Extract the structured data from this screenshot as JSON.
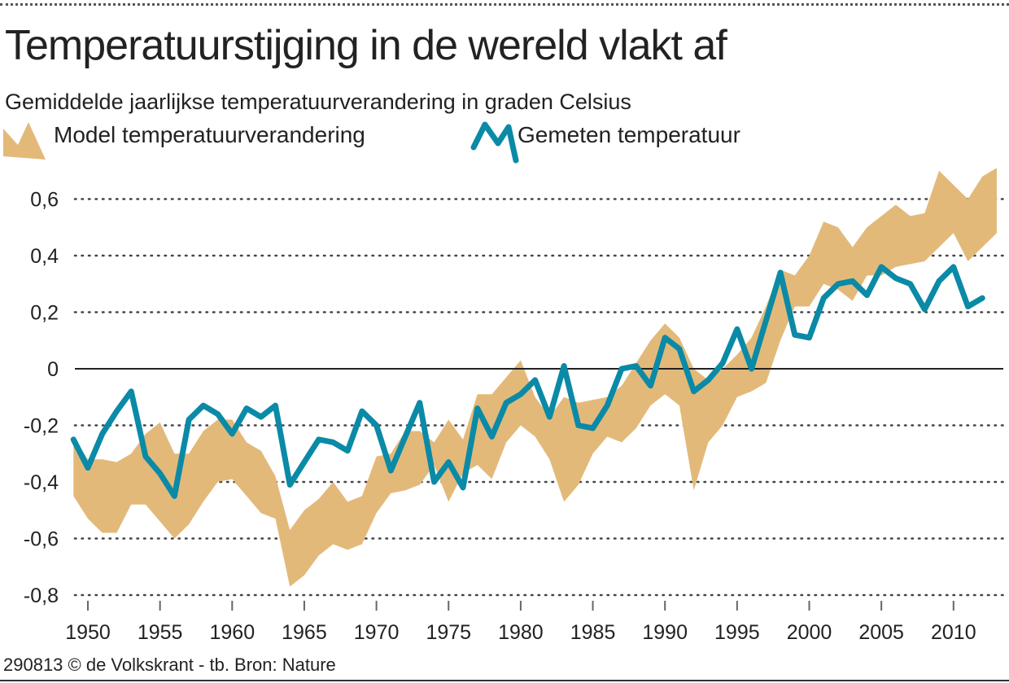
{
  "title": "Temperatuurstijging in de wereld vlakt af",
  "subtitle": "Gemiddelde jaarlijkse temperatuurverandering in graden Celsius",
  "footer": "290813 © de Volkskrant - tb. Bron: Nature",
  "colors": {
    "model_band": "#e3b97a",
    "measured_line": "#0a8aa6",
    "zero_line": "#222222",
    "grid": "#444444"
  },
  "chart_data": {
    "type": "line",
    "title": "Temperatuurstijging in de wereld vlakt af",
    "subtitle": "Gemiddelde jaarlijkse temperatuurverandering in graden Celsius",
    "xlabel": "",
    "ylabel": "",
    "ylim": [
      -0.8,
      0.7
    ],
    "xlim": [
      1949,
      2013
    ],
    "grid": "horizontal dotted",
    "legend": "top-left",
    "y_ticks": [
      0.6,
      0.4,
      0.2,
      0,
      -0.2,
      -0.4,
      -0.6,
      -0.8
    ],
    "y_tick_labels": [
      "0,6",
      "0,4",
      "0,2",
      "0",
      "-0,2",
      "-0,4",
      "-0,6",
      "-0,8"
    ],
    "x_ticks": [
      1950,
      1955,
      1960,
      1965,
      1970,
      1975,
      1980,
      1985,
      1990,
      1995,
      2000,
      2005,
      2010
    ],
    "x_tick_labels": [
      "1950",
      "1955",
      "1960",
      "1965",
      "1970",
      "1975",
      "1980",
      "1985",
      "1990",
      "1995",
      "2000",
      "2005",
      "2010"
    ],
    "series": [
      {
        "name": "Model temperatuurverandering",
        "type": "band",
        "x": [
          1949,
          1950,
          1951,
          1952,
          1953,
          1954,
          1955,
          1956,
          1957,
          1958,
          1959,
          1960,
          1961,
          1962,
          1963,
          1964,
          1965,
          1966,
          1967,
          1968,
          1969,
          1970,
          1971,
          1972,
          1973,
          1974,
          1975,
          1976,
          1977,
          1978,
          1979,
          1980,
          1981,
          1982,
          1983,
          1984,
          1985,
          1986,
          1987,
          1988,
          1989,
          1990,
          1991,
          1992,
          1993,
          1994,
          1995,
          1996,
          1997,
          1998,
          1999,
          2000,
          2001,
          2002,
          2003,
          2004,
          2005,
          2006,
          2007,
          2008,
          2009,
          2010,
          2011,
          2012,
          2013
        ],
        "upper": [
          -0.24,
          -0.32,
          -0.32,
          -0.33,
          -0.3,
          -0.23,
          -0.19,
          -0.3,
          -0.3,
          -0.22,
          -0.18,
          -0.18,
          -0.26,
          -0.29,
          -0.38,
          -0.57,
          -0.5,
          -0.46,
          -0.4,
          -0.47,
          -0.45,
          -0.31,
          -0.3,
          -0.22,
          -0.22,
          -0.26,
          -0.18,
          -0.25,
          -0.09,
          -0.09,
          -0.03,
          0.03,
          -0.1,
          -0.17,
          -0.1,
          -0.12,
          -0.11,
          -0.1,
          -0.06,
          0.02,
          0.1,
          0.16,
          0.11,
          0.0,
          -0.04,
          0.0,
          0.05,
          0.11,
          0.22,
          0.35,
          0.33,
          0.4,
          0.52,
          0.5,
          0.43,
          0.5,
          0.54,
          0.58,
          0.54,
          0.55,
          0.7,
          0.65,
          0.6,
          0.68,
          0.71
        ],
        "lower": [
          -0.45,
          -0.53,
          -0.58,
          -0.58,
          -0.48,
          -0.48,
          -0.54,
          -0.6,
          -0.55,
          -0.47,
          -0.4,
          -0.39,
          -0.45,
          -0.51,
          -0.53,
          -0.77,
          -0.73,
          -0.66,
          -0.62,
          -0.64,
          -0.62,
          -0.51,
          -0.44,
          -0.43,
          -0.41,
          -0.34,
          -0.47,
          -0.37,
          -0.34,
          -0.39,
          -0.26,
          -0.2,
          -0.24,
          -0.32,
          -0.47,
          -0.41,
          -0.3,
          -0.24,
          -0.26,
          -0.21,
          -0.13,
          -0.09,
          -0.13,
          -0.43,
          -0.26,
          -0.2,
          -0.1,
          -0.08,
          -0.05,
          0.1,
          0.22,
          0.22,
          0.3,
          0.28,
          0.24,
          0.33,
          0.33,
          0.36,
          0.37,
          0.38,
          0.43,
          0.48,
          0.38,
          0.43,
          0.48
        ]
      },
      {
        "name": "Gemeten temperatuur",
        "type": "line",
        "x": [
          1949,
          1950,
          1951,
          1952,
          1953,
          1954,
          1955,
          1956,
          1957,
          1958,
          1959,
          1960,
          1961,
          1962,
          1963,
          1964,
          1965,
          1966,
          1967,
          1968,
          1969,
          1970,
          1971,
          1972,
          1973,
          1974,
          1975,
          1976,
          1977,
          1978,
          1979,
          1980,
          1981,
          1982,
          1983,
          1984,
          1985,
          1986,
          1987,
          1988,
          1989,
          1990,
          1991,
          1992,
          1993,
          1994,
          1995,
          1996,
          1997,
          1998,
          1999,
          2000,
          2001,
          2002,
          2003,
          2004,
          2005,
          2006,
          2007,
          2008,
          2009,
          2010,
          2011,
          2012
        ],
        "values": [
          -0.25,
          -0.35,
          -0.23,
          -0.15,
          -0.08,
          -0.31,
          -0.37,
          -0.45,
          -0.18,
          -0.13,
          -0.16,
          -0.23,
          -0.14,
          -0.17,
          -0.13,
          -0.41,
          -0.33,
          -0.25,
          -0.26,
          -0.29,
          -0.15,
          -0.2,
          -0.36,
          -0.24,
          -0.12,
          -0.4,
          -0.33,
          -0.42,
          -0.14,
          -0.24,
          -0.12,
          -0.09,
          -0.04,
          -0.17,
          0.01,
          -0.2,
          -0.21,
          -0.13,
          0.0,
          0.01,
          -0.06,
          0.11,
          0.07,
          -0.08,
          -0.04,
          0.02,
          0.14,
          0.0,
          0.17,
          0.34,
          0.12,
          0.11,
          0.25,
          0.3,
          0.31,
          0.26,
          0.36,
          0.32,
          0.3,
          0.21,
          0.31,
          0.36,
          0.22,
          0.25
        ]
      }
    ]
  }
}
